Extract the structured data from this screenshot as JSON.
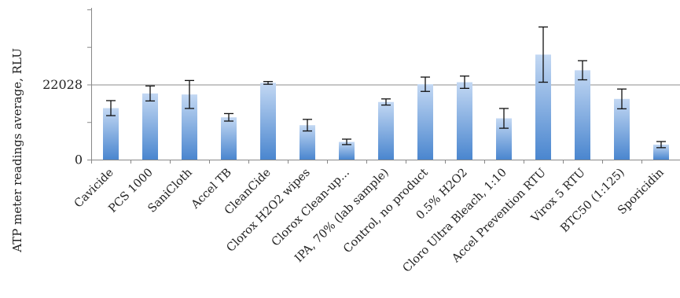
{
  "chart_data": {
    "type": "bar",
    "ylabel": "ATP meter readings average, RLU",
    "ylim": [
      0,
      44500
    ],
    "yticks": [
      {
        "value": 0,
        "label": "0"
      },
      {
        "value": 22028,
        "label": "22028"
      }
    ],
    "gridlines": [
      22028
    ],
    "grid": true,
    "legend": "none",
    "categories": [
      "Cavicide",
      "PCS 1000",
      "SaniCloth",
      "Accel TB",
      "CleanCide",
      "Clorox H2O2 wipes",
      "Clorox Clean-up...",
      "IPA, 70% (lab sample)",
      "Control, no product",
      "0.5% H2O2",
      "Cloro Ultra Bleach, 1:10",
      "Accel Prevention RTU",
      "Virox 5 RTU",
      "BTC50 (1:125)",
      "Sporicidin"
    ],
    "values": [
      15100,
      19400,
      19100,
      12400,
      22500,
      10100,
      5200,
      16900,
      22100,
      22700,
      12100,
      30800,
      26200,
      17800,
      4400
    ],
    "errors": [
      2200,
      2200,
      4100,
      1100,
      400,
      1700,
      800,
      900,
      2100,
      1800,
      2900,
      8100,
      2800,
      2900,
      900
    ],
    "colors": {
      "bar_top": "#c3d8f3",
      "bar_bottom": "#4a86cf",
      "error_bar": "#111111",
      "axis": "#888888",
      "grid": "#8c8c8c"
    }
  }
}
